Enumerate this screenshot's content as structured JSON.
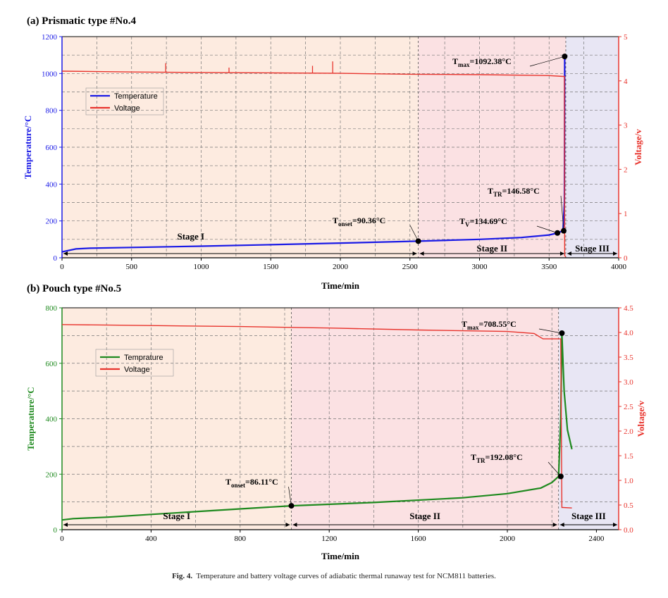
{
  "caption": {
    "label": "Fig. 4.",
    "text": "Temperature and battery voltage curves of adiabatic thermal runaway test for NCM811 batteries."
  },
  "colors": {
    "stage1_bg": "#fdebe0",
    "stage2_bg": "#fbe1e3",
    "stage3_bg": "#e8e6f4",
    "voltage": "#e8342d",
    "temp_a": "#1a1ae6",
    "temp_b": "#1f8a1f"
  },
  "chart_data": [
    {
      "type": "line",
      "title": "(a) Prismatic type #No.4",
      "xlabel": "Time/min",
      "ylabel": "Temperature/°C",
      "y2label": "Voltage/v",
      "xlim": [
        0,
        4000
      ],
      "ylim": [
        0,
        1200
      ],
      "y2lim": [
        0,
        5
      ],
      "xticks": [
        0,
        500,
        1000,
        1500,
        2000,
        2500,
        3000,
        3500,
        4000
      ],
      "yticks": [
        0,
        200,
        400,
        600,
        800,
        1000,
        1200
      ],
      "y2ticks": [
        0,
        1,
        2,
        3,
        4,
        5
      ],
      "grid": true,
      "legend": {
        "position": "upper-left",
        "entries": [
          "Temperature",
          "Voltage"
        ]
      },
      "stages": [
        {
          "label": "Stage I",
          "x_start": 0,
          "x_end": 2560
        },
        {
          "label": "Stage II",
          "x_start": 2560,
          "x_end": 3620
        },
        {
          "label": "Stage III",
          "x_start": 3620,
          "x_end": 4000
        }
      ],
      "series": [
        {
          "name": "Temperature",
          "axis": "left",
          "x": [
            0,
            100,
            200,
            500,
            1000,
            1500,
            2000,
            2560,
            3000,
            3300,
            3500,
            3560,
            3600,
            3610,
            3612,
            3615
          ],
          "y": [
            32,
            48,
            52,
            56,
            63,
            71,
            80,
            90.36,
            100,
            110,
            124,
            134.69,
            146.58,
            300,
            1092.38,
            1092.38
          ]
        },
        {
          "name": "Voltage",
          "axis": "right",
          "x": [
            0,
            500,
            1000,
            1500,
            2000,
            2500,
            3000,
            3500,
            3600,
            3610,
            3612,
            3620
          ],
          "y": [
            4.22,
            4.2,
            4.19,
            4.18,
            4.17,
            4.15,
            4.14,
            4.12,
            4.1,
            4.1,
            0.05,
            0.02
          ]
        }
      ],
      "spikes_voltage": [
        {
          "x": 745,
          "y": 4.4
        },
        {
          "x": 1200,
          "y": 4.3
        },
        {
          "x": 1800,
          "y": 4.34
        },
        {
          "x": 1945,
          "y": 4.44
        }
      ],
      "annotations": [
        {
          "main": "T",
          "sub": "max",
          "value": "=1092.38°C",
          "x": 3612,
          "y": 1092.38
        },
        {
          "main": "T",
          "sub": "TR",
          "value": "=146.58°C",
          "x": 3605,
          "y": 146.58
        },
        {
          "main": "T",
          "sub": "V",
          "value": "=134.69°C",
          "x": 3560,
          "y": 134.69
        },
        {
          "main": "T",
          "sub": "onset",
          "value": "=90.36°C",
          "x": 2560,
          "y": 90.36
        }
      ]
    },
    {
      "type": "line",
      "title": "(b) Pouch type #No.5",
      "xlabel": "Time/min",
      "ylabel": "Temperature/°C",
      "y2label": "Voltage/v",
      "xlim": [
        0,
        2500
      ],
      "ylim": [
        0,
        800
      ],
      "y2lim": [
        0,
        4.5
      ],
      "xticks": [
        0,
        400,
        800,
        1200,
        1600,
        2000,
        2400
      ],
      "yticks": [
        0,
        200,
        400,
        600,
        800
      ],
      "y2ticks": [
        0,
        0.5,
        1.0,
        1.5,
        2.0,
        2.5,
        3.0,
        3.5,
        4.0,
        4.5
      ],
      "y2ticklabels": [
        "0.0",
        "0.5",
        "1.0",
        "1.5",
        "2.0",
        "2.5",
        "3.0",
        "3.5",
        "4.0",
        "4.5"
      ],
      "grid": true,
      "legend": {
        "position": "upper-left",
        "entries": [
          "Temprature",
          "Voltage"
        ]
      },
      "stages": [
        {
          "label": "Stage I",
          "x_start": 0,
          "x_end": 1030
        },
        {
          "label": "Stage II",
          "x_start": 1030,
          "x_end": 2230
        },
        {
          "label": "Stage III",
          "x_start": 2230,
          "x_end": 2500
        }
      ],
      "series": [
        {
          "name": "Temprature",
          "axis": "left",
          "x": [
            0,
            50,
            200,
            400,
            600,
            800,
            1030,
            1400,
            1800,
            2000,
            2150,
            2200,
            2230,
            2240,
            2245,
            2255,
            2270,
            2290
          ],
          "y": [
            35,
            40,
            45,
            55,
            65,
            75,
            86.11,
            98,
            115,
            130,
            150,
            170,
            192.08,
            400,
            708.55,
            500,
            360,
            290
          ]
        },
        {
          "name": "Voltage",
          "axis": "right",
          "x": [
            0,
            400,
            800,
            1200,
            1600,
            2000,
            2120,
            2160,
            2240,
            2245,
            2250,
            2290
          ],
          "y": [
            4.16,
            4.14,
            4.12,
            4.09,
            4.05,
            4.02,
            3.98,
            3.87,
            3.87,
            0.45,
            0.45,
            0.44
          ]
        }
      ],
      "annotations": [
        {
          "main": "T",
          "sub": "max",
          "value": "=708.55°C",
          "x": 2245,
          "y": 708.55
        },
        {
          "main": "T",
          "sub": "TR",
          "value": "=192.08°C",
          "x": 2240,
          "y": 192.08
        },
        {
          "main": "T",
          "sub": "onset",
          "value": "=86.11°C",
          "x": 1030,
          "y": 86.11
        }
      ]
    }
  ]
}
